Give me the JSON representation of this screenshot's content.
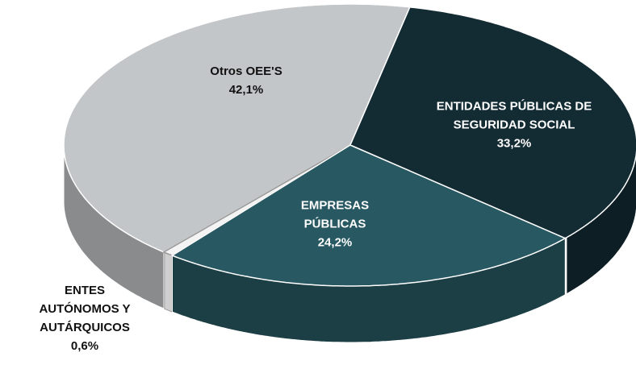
{
  "chart_data": {
    "type": "pie",
    "categories": [
      "Otros OEE'S",
      "ENTES AUTÓNOMOS Y AUTÁRQUICOS",
      "EMPRESAS PÚBLICAS",
      "ENTIDADES PÚBLICAS DE SEGURIDAD SOCIAL"
    ],
    "values": [
      42.1,
      0.6,
      24.2,
      33.2
    ],
    "value_labels": [
      "42,1%",
      "0,6%",
      "24,2%",
      "33,2%"
    ],
    "colors": [
      "#c3c6c8",
      "#f4f4f4",
      "#285862",
      "#132b33"
    ]
  }
}
